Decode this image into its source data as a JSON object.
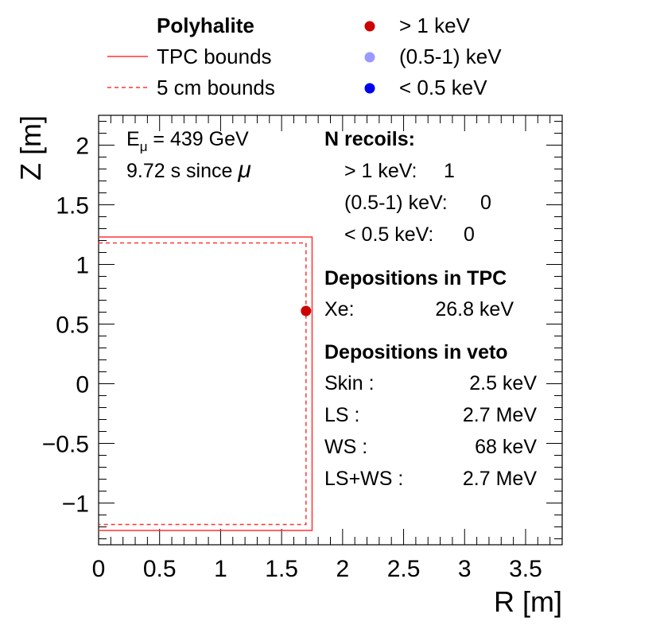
{
  "chart_data": {
    "type": "scatter",
    "xlabel": "R [m]",
    "ylabel": "Z [m]",
    "xlim": [
      0,
      3.8
    ],
    "ylim": [
      -1.35,
      2.25
    ],
    "xticks": [
      0,
      0.5,
      1,
      1.5,
      2,
      2.5,
      3,
      3.5
    ],
    "xtick_labels": [
      "0",
      "0.5",
      "1",
      "1.5",
      "2",
      "2.5",
      "3",
      "3.5"
    ],
    "yticks": [
      -1,
      -0.5,
      0,
      0.5,
      1,
      1.5,
      2
    ],
    "ytick_labels": [
      "−1",
      "−0.5",
      "0",
      "0.5",
      "1",
      "1.5",
      "2"
    ],
    "legend": {
      "header": "Polyhalite",
      "line_entries": [
        {
          "label": "TPC bounds",
          "style": "solid",
          "color": "#ff3333"
        },
        {
          "label": "5 cm bounds",
          "style": "dashed",
          "color": "#ff3333"
        }
      ],
      "marker_entries": [
        {
          "label": "> 1 keV",
          "color": "#cc0000"
        },
        {
          "label": "(0.5-1) keV",
          "color": "#9999ff"
        },
        {
          "label": "< 0.5 keV",
          "color": "#0000ee"
        }
      ]
    },
    "boundaries": [
      {
        "name": "TPC bounds",
        "r_max": 1.75,
        "z_min": -1.23,
        "z_max": 1.23,
        "style": "solid",
        "color": "#ff3333"
      },
      {
        "name": "5 cm bounds",
        "r_max": 1.7,
        "z_min": -1.18,
        "z_max": 1.18,
        "style": "dashed",
        "color": "#ff3333"
      }
    ],
    "series": [
      {
        "name": "> 1 keV",
        "color": "#cc0000",
        "points": [
          {
            "r": 1.7,
            "z": 0.61
          }
        ]
      },
      {
        "name": "(0.5-1) keV",
        "color": "#9999ff",
        "points": []
      },
      {
        "name": "< 0.5 keV",
        "color": "#0000ee",
        "points": []
      }
    ],
    "annotations": {
      "energy_prefix": "E",
      "energy_subscript": "μ",
      "energy_value": " =  439 GeV",
      "time_text": "9.72 s since ",
      "time_symbol": "μ",
      "recoils_title": "N recoils:",
      "recoils": [
        {
          "label": "> 1 keV:",
          "value": "1"
        },
        {
          "label": "(0.5-1) keV:",
          "value": "0"
        },
        {
          "label": "< 0.5 keV:",
          "value": "0"
        }
      ],
      "tpc_title": "Depositions in TPC",
      "tpc_depositions": [
        {
          "label": "Xe:",
          "value": "26.8 keV"
        }
      ],
      "veto_title": "Depositions in veto",
      "veto_depositions": [
        {
          "label": "Skin :",
          "value": "2.5 keV"
        },
        {
          "label": "LS :",
          "value": "2.7 MeV"
        },
        {
          "label": "WS :",
          "value": "68 keV"
        },
        {
          "label": "LS+WS :",
          "value": "2.7 MeV"
        }
      ]
    }
  }
}
